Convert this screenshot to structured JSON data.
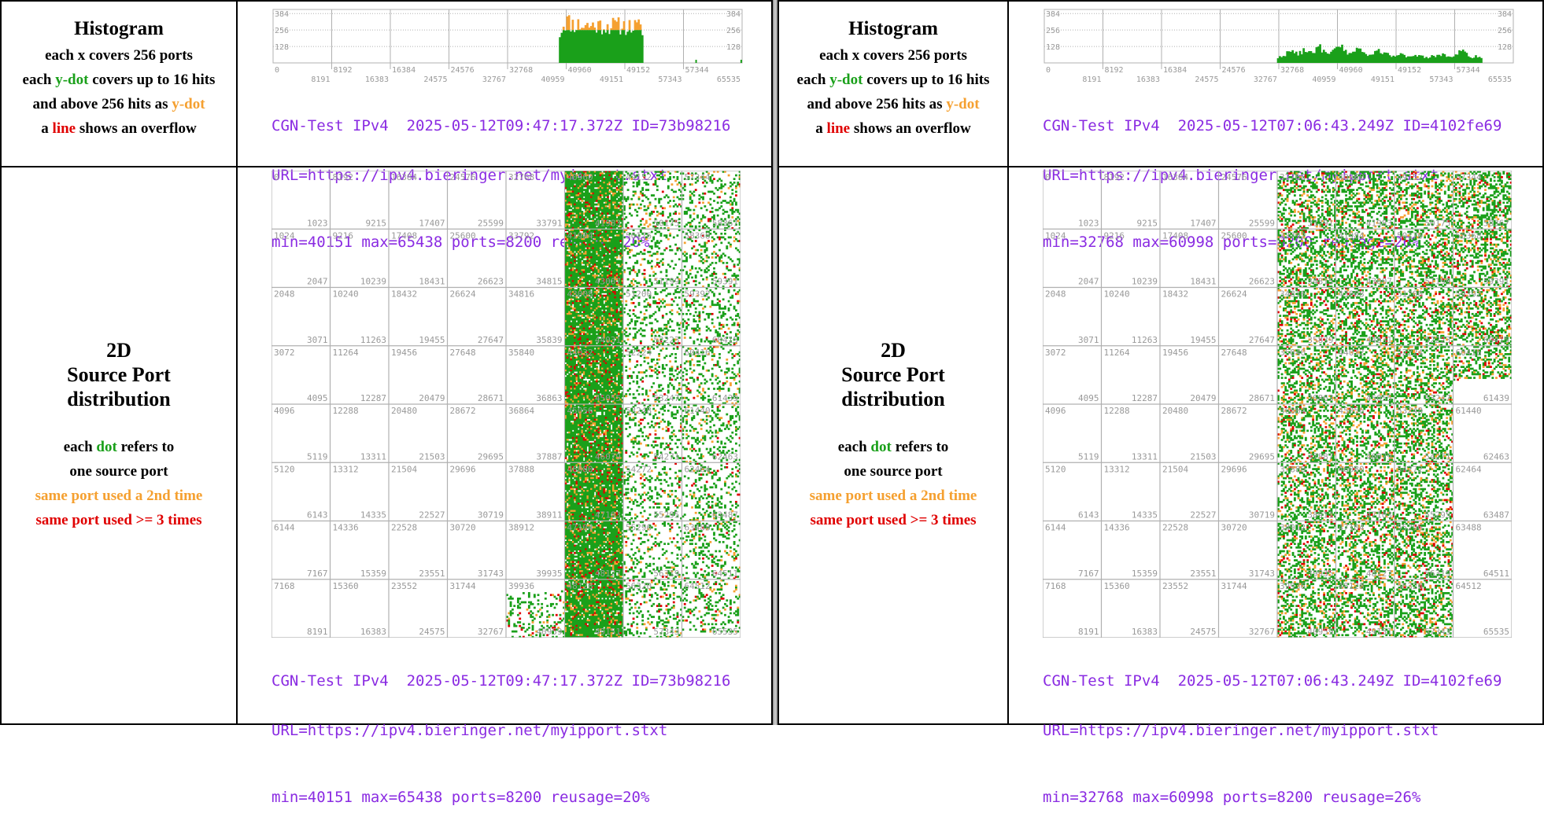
{
  "panels": [
    {
      "legend": {
        "histogram_title": "Histogram",
        "histogram_lines": [
          {
            "parts": [
              {
                "t": "each x covers 256 ports",
                "c": ""
              }
            ]
          },
          {
            "parts": [
              {
                "t": "each ",
                "c": ""
              },
              {
                "t": "y-dot",
                "c": "green"
              },
              {
                "t": " covers up to 16 hits",
                "c": ""
              }
            ]
          },
          {
            "parts": [
              {
                "t": "and above 256 hits as ",
                "c": ""
              },
              {
                "t": "y-dot",
                "c": "orange"
              }
            ]
          },
          {
            "parts": [
              {
                "t": "a ",
                "c": ""
              },
              {
                "t": "line",
                "c": "red"
              },
              {
                "t": " shows an overflow",
                "c": ""
              }
            ]
          }
        ],
        "dist_title": [
          "2D",
          "Source Port",
          "distribution"
        ],
        "dist_lines": [
          {
            "parts": [
              {
                "t": "each ",
                "c": ""
              },
              {
                "t": "dot",
                "c": "green"
              },
              {
                "t": " refers to",
                "c": ""
              }
            ]
          },
          {
            "parts": [
              {
                "t": "one source port",
                "c": ""
              }
            ]
          },
          {
            "parts": [
              {
                "t": "same port used a 2nd time",
                "c": "orange"
              }
            ]
          },
          {
            "parts": [
              {
                "t": "same port used >= 3 times",
                "c": "red"
              }
            ]
          }
        ]
      },
      "caption": {
        "line1": "CGN-Test IPv4  2025-05-12T09:47:17.372Z ID=73b98216",
        "line2": "URL=https://ipv4.bieringer.net/myipport.stxt",
        "line3": "min=40151 max=65438 ports=8200 reusage=20%"
      }
    },
    {
      "legend": {
        "histogram_title": "Histogram",
        "histogram_lines": [
          {
            "parts": [
              {
                "t": "each x covers 256 ports",
                "c": ""
              }
            ]
          },
          {
            "parts": [
              {
                "t": "each ",
                "c": ""
              },
              {
                "t": "y-dot",
                "c": "green"
              },
              {
                "t": " covers up to 16 hits",
                "c": ""
              }
            ]
          },
          {
            "parts": [
              {
                "t": "and above 256 hits as ",
                "c": ""
              },
              {
                "t": "y-dot",
                "c": "orange"
              }
            ]
          },
          {
            "parts": [
              {
                "t": "a ",
                "c": ""
              },
              {
                "t": "line",
                "c": "red"
              },
              {
                "t": " shows an overflow",
                "c": ""
              }
            ]
          }
        ],
        "dist_title": [
          "2D",
          "Source Port",
          "distribution"
        ],
        "dist_lines": [
          {
            "parts": [
              {
                "t": "each ",
                "c": ""
              },
              {
                "t": "dot",
                "c": "green"
              },
              {
                "t": " refers to",
                "c": ""
              }
            ]
          },
          {
            "parts": [
              {
                "t": "one source port",
                "c": ""
              }
            ]
          },
          {
            "parts": [
              {
                "t": "same port used a 2nd time",
                "c": "orange"
              }
            ]
          },
          {
            "parts": [
              {
                "t": "same port used >= 3 times",
                "c": "red"
              }
            ]
          }
        ]
      },
      "caption": {
        "line1": "CGN-Test IPv4  2025-05-12T07:06:43.249Z ID=4102fe69",
        "line2": "URL=https://ipv4.bieringer.net/myipport.stxt",
        "line3": "min=32768 max=60998 ports=8200 reusage=26%"
      }
    }
  ],
  "colors": {
    "green": "#1aa01a",
    "orange": "#f5a030",
    "red": "#e00000",
    "caption": "#8a2be2",
    "grid": "#b0b0b0"
  },
  "chart_data": [
    {
      "type": "bar",
      "y_tick_labels": [
        "384",
        "256",
        "128"
      ],
      "x_tick_labels_top": [
        "0",
        "8192",
        "16384",
        "24576",
        "32768",
        "40960",
        "49152",
        "57344"
      ],
      "x_tick_labels_bottom": [
        "8191",
        "16383",
        "24575",
        "32767",
        "40959",
        "49151",
        "57343",
        "65535"
      ],
      "xlim": [
        0,
        65535
      ],
      "ylim": [
        0,
        416
      ],
      "series": [
        {
          "x": [
            40151,
            40500,
            41000,
            41500,
            42000,
            43000,
            44000,
            45000,
            46000,
            47000,
            48000,
            49000,
            50000,
            51000,
            51600
          ],
          "values": [
            230,
            300,
            330,
            310,
            300,
            295,
            290,
            290,
            290,
            290,
            288,
            285,
            282,
            280,
            260
          ]
        }
      ],
      "scatter_bursts": [
        59000,
        65300
      ]
    },
    {
      "type": "table",
      "grid_columns": 8,
      "grid_rows": 8,
      "cell_start_labels": [
        [
          "0",
          "8192",
          "16384",
          "24576",
          "32768",
          "40960",
          "49152",
          "57344"
        ],
        [
          "1024",
          "9216",
          "17408",
          "25600",
          "33792",
          "41984",
          "50176",
          "58368"
        ],
        [
          "2048",
          "10240",
          "18432",
          "26624",
          "34816",
          "43008",
          "51200",
          "59392"
        ],
        [
          "3072",
          "11264",
          "19456",
          "27648",
          "35840",
          "44032",
          "52224",
          "60416"
        ],
        [
          "4096",
          "12288",
          "20480",
          "28672",
          "36864",
          "45056",
          "53248",
          "61440"
        ],
        [
          "5120",
          "13312",
          "21504",
          "29696",
          "37888",
          "46080",
          "54272",
          "62464"
        ],
        [
          "6144",
          "14336",
          "22528",
          "30720",
          "38912",
          "47104",
          "55296",
          "63488"
        ],
        [
          "7168",
          "15360",
          "23552",
          "31744",
          "39936",
          "48128",
          "56320",
          "64512"
        ]
      ],
      "cell_end_labels": [
        [
          "1023",
          "9215",
          "17407",
          "25599",
          "33791",
          "41983",
          "50175",
          "58367"
        ],
        [
          "2047",
          "10239",
          "18431",
          "26623",
          "34815",
          "43007",
          "51199",
          "59391"
        ],
        [
          "3071",
          "11263",
          "19455",
          "27647",
          "35839",
          "44031",
          "52223",
          "60415"
        ],
        [
          "4095",
          "12287",
          "20479",
          "28671",
          "36863",
          "45055",
          "53247",
          "61439"
        ],
        [
          "5119",
          "13311",
          "21503",
          "29695",
          "37887",
          "46079",
          "54271",
          "62463"
        ],
        [
          "6143",
          "14335",
          "22527",
          "30719",
          "38911",
          "47103",
          "55295",
          "63487"
        ],
        [
          "7167",
          "15359",
          "23551",
          "31743",
          "39935",
          "48127",
          "56319",
          "64511"
        ],
        [
          "8191",
          "16383",
          "24575",
          "32767",
          "40959",
          "49151",
          "57343",
          "65535"
        ]
      ],
      "port_range": [
        40151,
        65438
      ],
      "dense_column_span": [
        5,
        5
      ],
      "ports": 8200,
      "reusage_percent": 20
    },
    {
      "type": "bar",
      "y_tick_labels": [
        "384",
        "256",
        "128"
      ],
      "x_tick_labels_top": [
        "0",
        "8192",
        "16384",
        "24576",
        "32768",
        "40960",
        "49152",
        "57344"
      ],
      "x_tick_labels_bottom": [
        "8191",
        "16383",
        "24575",
        "32767",
        "40959",
        "49151",
        "57343",
        "65535"
      ],
      "xlim": [
        0,
        65535
      ],
      "ylim": [
        0,
        416
      ],
      "series": [
        {
          "x": [
            32768,
            33500,
            34500,
            35500,
            36500,
            37500,
            38500,
            39500,
            40500,
            41500,
            42500,
            43500,
            44500,
            45500,
            46500,
            47500,
            48500,
            49500,
            50500,
            51500,
            52500,
            53500,
            54500,
            55500,
            56500,
            57500,
            58500,
            59500,
            60500,
            60998
          ],
          "values": [
            40,
            65,
            90,
            70,
            110,
            80,
            120,
            60,
            95,
            130,
            70,
            100,
            85,
            60,
            95,
            75,
            60,
            70,
            55,
            45,
            60,
            40,
            55,
            65,
            45,
            70,
            90,
            40,
            55,
            35
          ]
        }
      ]
    },
    {
      "type": "table",
      "grid_columns": 8,
      "grid_rows": 8,
      "cell_start_labels": [
        [
          "0",
          "8192",
          "16384",
          "24576",
          "32768",
          "40960",
          "49152",
          "57344"
        ],
        [
          "1024",
          "9216",
          "17408",
          "25600",
          "33792",
          "41984",
          "50176",
          "58368"
        ],
        [
          "2048",
          "10240",
          "18432",
          "26624",
          "34816",
          "43008",
          "51200",
          "59392"
        ],
        [
          "3072",
          "11264",
          "19456",
          "27648",
          "35840",
          "44032",
          "52224",
          "60416"
        ],
        [
          "4096",
          "12288",
          "20480",
          "28672",
          "36864",
          "45056",
          "53248",
          "61440"
        ],
        [
          "5120",
          "13312",
          "21504",
          "29696",
          "37888",
          "46080",
          "54272",
          "62464"
        ],
        [
          "6144",
          "14336",
          "22528",
          "30720",
          "38912",
          "47104",
          "55296",
          "63488"
        ],
        [
          "7168",
          "15360",
          "23552",
          "31744",
          "39936",
          "48128",
          "56320",
          "64512"
        ]
      ],
      "cell_end_labels": [
        [
          "1023",
          "9215",
          "17407",
          "25599",
          "33791",
          "41983",
          "50175",
          "58367"
        ],
        [
          "2047",
          "10239",
          "18431",
          "26623",
          "34815",
          "43007",
          "51199",
          "59391"
        ],
        [
          "3071",
          "11263",
          "19455",
          "27647",
          "35839",
          "44031",
          "52223",
          "60415"
        ],
        [
          "4095",
          "12287",
          "20479",
          "28671",
          "36863",
          "45055",
          "53247",
          "61439"
        ],
        [
          "5119",
          "13311",
          "21503",
          "29695",
          "37887",
          "46079",
          "54271",
          "62463"
        ],
        [
          "6143",
          "14335",
          "22527",
          "30719",
          "38911",
          "47103",
          "55295",
          "63487"
        ],
        [
          "7167",
          "15359",
          "23551",
          "31743",
          "39935",
          "48127",
          "56319",
          "64511"
        ],
        [
          "8191",
          "16383",
          "24575",
          "32767",
          "40959",
          "49151",
          "57343",
          "65535"
        ]
      ],
      "port_range": [
        32768,
        60998
      ],
      "dense_column_span": [
        4,
        7
      ],
      "ports": 8200,
      "reusage_percent": 26
    }
  ]
}
